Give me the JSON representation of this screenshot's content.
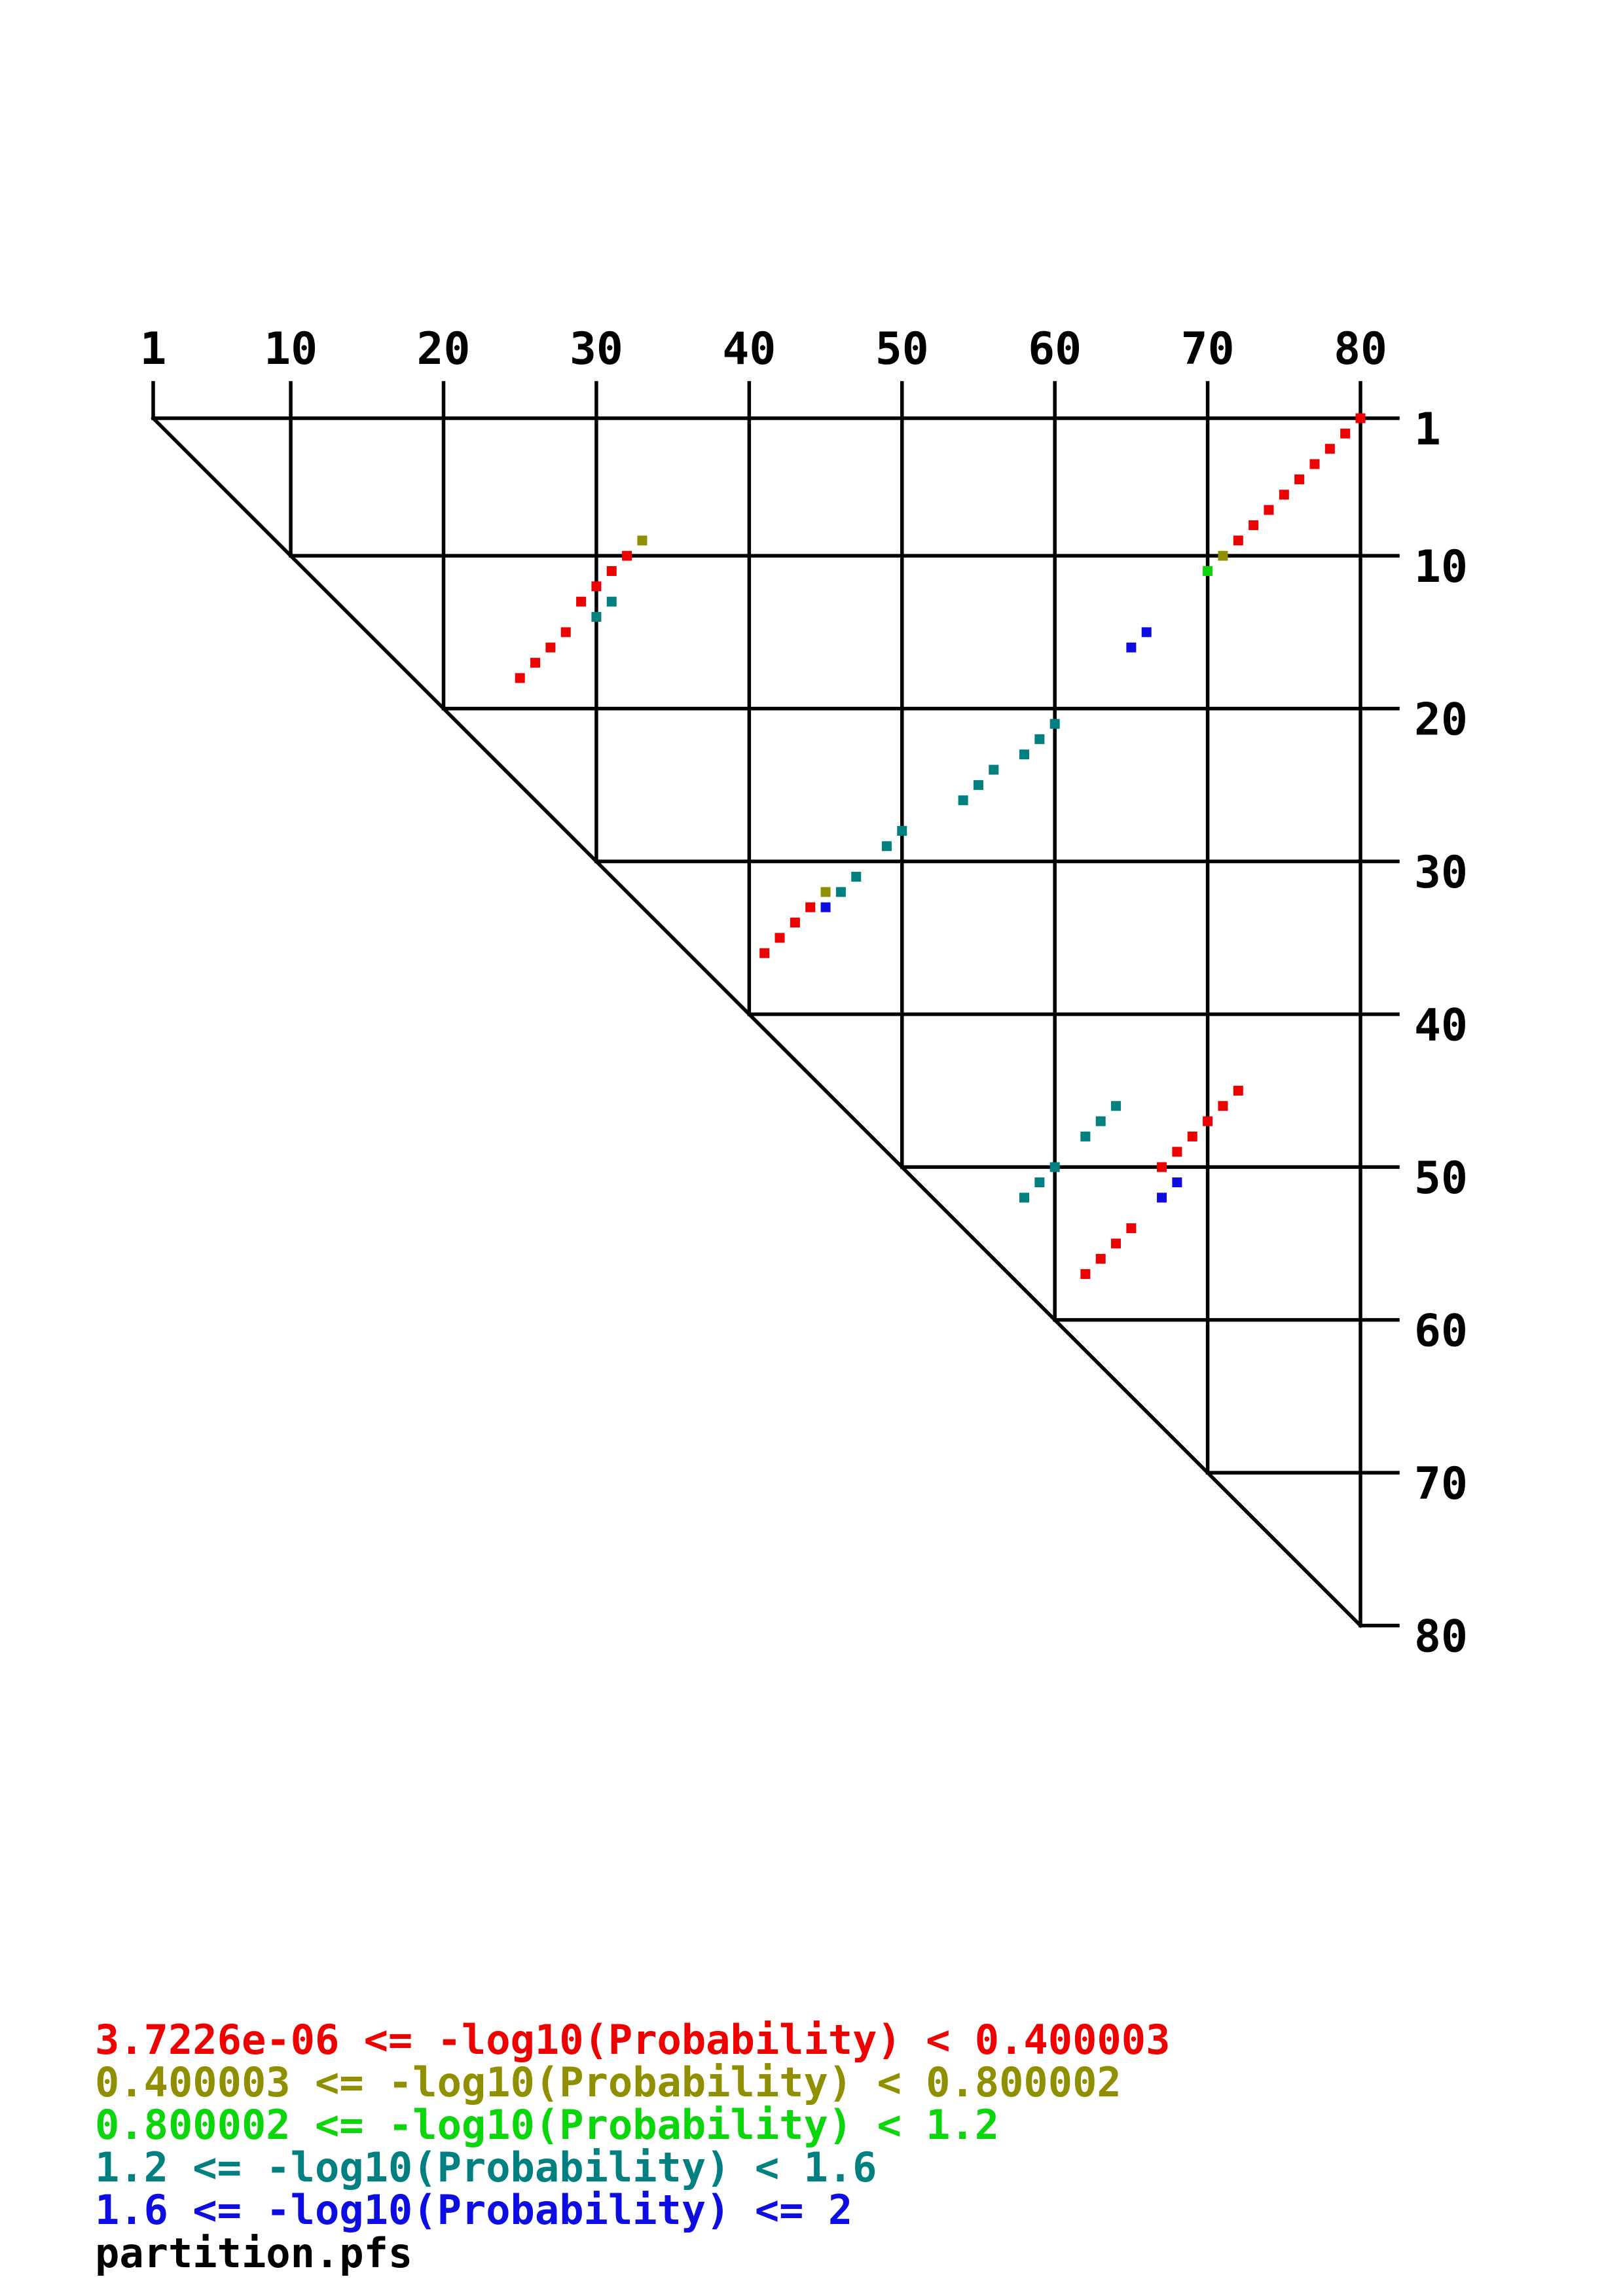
{
  "chart_data": {
    "type": "scatter",
    "title": "",
    "description": "Triangular base-pair probability dot plot (RNAstructure partition function output)",
    "x_axis": {
      "side": "top",
      "ticks": [
        1,
        10,
        20,
        30,
        40,
        50,
        60,
        70,
        80
      ],
      "min": 1,
      "max": 80
    },
    "y_axis": {
      "side": "right",
      "ticks": [
        1,
        10,
        20,
        30,
        40,
        50,
        60,
        70,
        80
      ],
      "min": 1,
      "max": 80
    },
    "grid": true,
    "marker": "square",
    "series": [
      {
        "name": "3.7226e-06 <= -log10(Probability) <  0.400003",
        "color": "#ee0000",
        "points": [
          [
            80,
            1
          ],
          [
            79,
            2
          ],
          [
            78,
            3
          ],
          [
            77,
            4
          ],
          [
            76,
            5
          ],
          [
            75,
            6
          ],
          [
            74,
            7
          ],
          [
            73,
            8
          ],
          [
            72,
            9
          ],
          [
            32,
            10
          ],
          [
            31,
            11
          ],
          [
            30,
            12
          ],
          [
            29,
            13
          ],
          [
            28,
            15
          ],
          [
            27,
            16
          ],
          [
            26,
            17
          ],
          [
            25,
            18
          ],
          [
            44,
            33
          ],
          [
            43,
            34
          ],
          [
            42,
            35
          ],
          [
            41,
            36
          ],
          [
            72,
            45
          ],
          [
            71,
            46
          ],
          [
            70,
            47
          ],
          [
            69,
            48
          ],
          [
            68,
            49
          ],
          [
            67,
            50
          ],
          [
            65,
            54
          ],
          [
            64,
            55
          ],
          [
            63,
            56
          ],
          [
            62,
            57
          ]
        ]
      },
      {
        "name": "0.400003 <= -log10(Probability) <  0.800002",
        "color": "#8f8f00",
        "points": [
          [
            33,
            9
          ],
          [
            71,
            10
          ],
          [
            45,
            32
          ]
        ]
      },
      {
        "name": "0.800002 <= -log10(Probability) <  1.2",
        "color": "#0bd50b",
        "points": [
          [
            70,
            11
          ]
        ]
      },
      {
        "name": "1.2 <= -log10(Probability) <  1.6",
        "color": "#008080",
        "points": [
          [
            31,
            13
          ],
          [
            30,
            14
          ],
          [
            60,
            21
          ],
          [
            59,
            22
          ],
          [
            58,
            23
          ],
          [
            56,
            24
          ],
          [
            55,
            25
          ],
          [
            54,
            26
          ],
          [
            50,
            28
          ],
          [
            49,
            29
          ],
          [
            47,
            31
          ],
          [
            46,
            32
          ],
          [
            64,
            46
          ],
          [
            63,
            47
          ],
          [
            62,
            48
          ],
          [
            60,
            50
          ],
          [
            59,
            51
          ],
          [
            58,
            52
          ]
        ]
      },
      {
        "name": "1.6 <= -log10(Probability) <= 2",
        "color": "#0d0de1",
        "points": [
          [
            66,
            15
          ],
          [
            65,
            16
          ],
          [
            45,
            33
          ],
          [
            68,
            51
          ],
          [
            67,
            52
          ]
        ]
      }
    ]
  },
  "legend": {
    "lines": [
      {
        "text": "3.7226e-06 <= -log10(Probability) <  0.400003",
        "color": "#ee0000"
      },
      {
        "text": "0.400003 <= -log10(Probability) <  0.800002",
        "color": "#8f8f00"
      },
      {
        "text": "0.800002 <= -log10(Probability) <  1.2",
        "color": "#0bd50b"
      },
      {
        "text": "1.2 <= -log10(Probability) <  1.6",
        "color": "#008080"
      },
      {
        "text": "1.6 <= -log10(Probability) <= 2",
        "color": "#0d0de1"
      }
    ]
  },
  "footer": {
    "filename": "partition.pfs",
    "color": "#000000"
  }
}
